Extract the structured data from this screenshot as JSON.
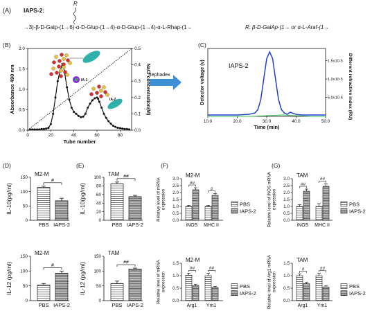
{
  "panel_a": {
    "label": "(A)",
    "name": "IAPS-2:",
    "branch_mark": "R",
    "structure": "→3)-β-D-Galp-(1→6)-α-D-Glup-(1→4)-α-D-Glup-(1→4)-α-L-Rhap-(1→",
    "r_definition": "R: β-D-GalAp-(1→ or α-L-Araf-(1→"
  },
  "panel_b": {
    "label": "(B)",
    "peak1": "IA-1",
    "peak2": "IA-2"
  },
  "sephadex_label": "Sephadex",
  "panel_c": {
    "label": "(C)",
    "title": "IAPS-2"
  },
  "chart_data": [
    {
      "id": "B",
      "type": "line",
      "xlabel": "Tube number",
      "ylabel": "Absorbance 490 nm",
      "y2label": "NaCl concentration(M)",
      "xlim": [
        0,
        90
      ],
      "ylim": [
        0,
        2.0
      ],
      "y2lim": [
        0,
        0.5
      ],
      "xticks": [
        "0",
        "20",
        "40",
        "60",
        "80"
      ],
      "yticks": [
        "0.0",
        "0.5",
        "1.0",
        "1.5",
        "2.0"
      ],
      "y2ticks": [
        "0.0",
        "0.1",
        "0.2",
        "0.3",
        "0.4",
        "0.5"
      ],
      "series": [
        {
          "x": [
            2,
            4,
            6,
            8,
            10,
            12,
            14,
            16,
            18,
            20,
            22,
            24,
            26,
            28,
            30,
            31,
            32,
            34,
            36,
            38,
            40,
            42,
            44,
            46,
            48,
            50,
            52,
            54,
            56,
            58,
            60,
            61,
            62,
            64,
            66,
            68,
            70,
            72,
            74,
            76,
            78,
            80,
            82,
            84,
            86,
            88
          ],
          "values": [
            0.02,
            0.02,
            0.02,
            0.02,
            0.02,
            0.03,
            0.03,
            0.04,
            0.06,
            0.15,
            0.4,
            0.8,
            1.2,
            1.45,
            1.62,
            1.55,
            1.4,
            1.05,
            0.75,
            0.55,
            0.45,
            0.4,
            0.35,
            0.32,
            0.33,
            0.4,
            0.55,
            0.65,
            0.73,
            0.78,
            0.8,
            0.77,
            0.7,
            0.55,
            0.4,
            0.3,
            0.22,
            0.16,
            0.11,
            0.08,
            0.06,
            0.05,
            0.04,
            0.03,
            0.03,
            0.02
          ]
        },
        {
          "axis": "y2",
          "x": [
            0,
            90
          ],
          "values": [
            0,
            0.5
          ]
        }
      ]
    },
    {
      "id": "C",
      "type": "line",
      "xlabel": "Time (min)",
      "ylabel": "Detector voltage (v)",
      "y2label": "Different refractive index (RU)",
      "xlim": [
        10,
        50
      ],
      "xticks": [
        "10.0",
        "20.0",
        "30.0",
        "40.0",
        "50.0"
      ],
      "y2ticks": [
        "5.0x10-6",
        "1.0x10-5",
        "1.5x10-5"
      ],
      "series": [
        {
          "x": [
            10,
            15,
            20,
            24,
            26,
            27,
            28,
            29,
            30,
            31,
            32,
            33,
            34,
            35,
            36,
            37,
            38,
            40,
            42,
            45,
            50
          ],
          "values": [
            0.02,
            0.02,
            0.02,
            0.03,
            0.05,
            0.1,
            0.25,
            0.55,
            0.85,
            0.95,
            0.85,
            0.55,
            0.25,
            0.1,
            0.05,
            0.03,
            0.06,
            0.03,
            0.02,
            0.02,
            0.02
          ]
        },
        {
          "x": [
            10,
            25,
            30,
            35,
            40,
            45,
            50
          ],
          "values": [
            0.0,
            0.0,
            0.01,
            0.02,
            0.01,
            0.0,
            0.0
          ]
        }
      ]
    },
    {
      "id": "D1",
      "type": "bar",
      "subtitle": "M2-M",
      "ylabel": "IL-10(pg/ml)",
      "categories": [
        "PBS",
        "IAPS-2"
      ],
      "values": [
        115,
        68
      ],
      "errors": [
        4,
        9
      ],
      "ylim": [
        0,
        150
      ],
      "yticks": [
        "0",
        "50",
        "100",
        "150"
      ],
      "sig": "#"
    },
    {
      "id": "E1",
      "type": "bar",
      "subtitle": "TAM",
      "ylabel": "IL-10(pg/ml)",
      "categories": [
        "PBS",
        "IAPS-2"
      ],
      "values": [
        85,
        55
      ],
      "errors": [
        4,
        3
      ],
      "ylim": [
        0,
        100
      ],
      "yticks": [
        "0",
        "20",
        "40",
        "60",
        "80",
        "100"
      ],
      "sig": "##"
    },
    {
      "id": "F1",
      "type": "bar",
      "subtitle": "M2-M",
      "ylabel": "Relative level of mRNA expression",
      "categories": [
        "iNOS",
        "MHC II"
      ],
      "series": [
        {
          "name": "PBS",
          "values": [
            1.0,
            1.0
          ]
        },
        {
          "name": "IAPS-2",
          "values": [
            2.2,
            1.8
          ]
        }
      ],
      "errors": [
        [
          0.08,
          0.08
        ],
        [
          0.15,
          0.12
        ]
      ],
      "ylim": [
        0,
        3.0
      ],
      "yticks": [
        "0.0",
        "0.5",
        "1.0",
        "1.5",
        "2.0",
        "2.5",
        "3.0"
      ],
      "sig": [
        "##",
        "#"
      ]
    },
    {
      "id": "G1",
      "type": "bar",
      "subtitle": "TAM",
      "ylabel": "Relative level of iNOS mRNA expression",
      "categories": [
        "iNOS",
        "MHC II"
      ],
      "series": [
        {
          "name": "PBS",
          "values": [
            1.0,
            1.0
          ]
        },
        {
          "name": "IAPS-2",
          "values": [
            2.1,
            2.45
          ]
        }
      ],
      "errors": [
        [
          0.12,
          0.2
        ],
        [
          0.15,
          0.18
        ]
      ],
      "ylim": [
        0,
        3.0
      ],
      "yticks": [
        "0.0",
        "0.5",
        "1.0",
        "1.5",
        "2.0",
        "2.5",
        "3.0"
      ],
      "sig": [
        "##",
        "##"
      ]
    },
    {
      "id": "D2",
      "type": "bar",
      "subtitle": "M2-M",
      "ylabel": "IL-12 (pg/ml)",
      "categories": [
        "PBS",
        "IAPS-2"
      ],
      "values": [
        53,
        93
      ],
      "errors": [
        5,
        7
      ],
      "ylim": [
        0,
        150
      ],
      "yticks": [
        "0",
        "50",
        "100",
        "150"
      ],
      "sig": "#"
    },
    {
      "id": "E2",
      "type": "bar",
      "subtitle": "TAM",
      "ylabel": "IL-12 (pg/ml)",
      "categories": [
        "PBS",
        "IAPS-2"
      ],
      "values": [
        58,
        107
      ],
      "errors": [
        8,
        3
      ],
      "ylim": [
        0,
        150
      ],
      "yticks": [
        "0",
        "50",
        "100",
        "150"
      ],
      "sig": "##"
    },
    {
      "id": "F2",
      "type": "bar",
      "subtitle": "M2-M",
      "ylabel": "Relative level of mRNA expression",
      "categories": [
        "Arg1",
        "Ym1"
      ],
      "series": [
        {
          "name": "PBS",
          "values": [
            1.02,
            1.0
          ]
        },
        {
          "name": "IAPS-2",
          "values": [
            0.6,
            0.53
          ]
        }
      ],
      "errors": [
        [
          0.08,
          0.1
        ],
        [
          0.05,
          0.04
        ]
      ],
      "ylim": [
        0,
        1.5
      ],
      "yticks": [
        "0.0",
        "0.5",
        "1.0",
        "1.5"
      ],
      "sig": [
        "##",
        "##"
      ]
    },
    {
      "id": "G2",
      "type": "bar",
      "subtitle": "TAM",
      "ylabel": "Relative level of Arg1 mRNA expression",
      "categories": [
        "Arg1",
        "Ym1"
      ],
      "series": [
        {
          "name": "PBS",
          "values": [
            1.0,
            1.0
          ]
        },
        {
          "name": "IAPS-2",
          "values": [
            0.68,
            0.55
          ]
        }
      ],
      "errors": [
        [
          0.07,
          0.09
        ],
        [
          0.05,
          0.04
        ]
      ],
      "ylim": [
        0,
        1.5
      ],
      "yticks": [
        "0.0",
        "0.5",
        "1.0",
        "1.5"
      ],
      "sig": [
        "#",
        "##"
      ]
    }
  ],
  "labels": {
    "D": "(D)",
    "E": "(E)",
    "F": "(F)",
    "G": "(G)"
  }
}
